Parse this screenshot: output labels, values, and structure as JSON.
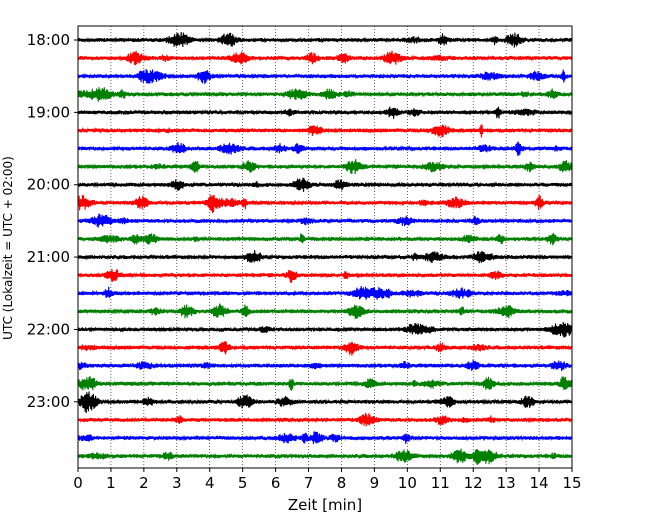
{
  "chart_data": {
    "type": "line",
    "title": "",
    "xlabel": "Zeit  [min]",
    "ylabel": "UTC (Lokalzeit = UTC + 02:00)",
    "xlim": [
      0,
      15
    ],
    "x_ticks": [
      "0",
      "1",
      "2",
      "3",
      "4",
      "5",
      "6",
      "7",
      "8",
      "9",
      "10",
      "11",
      "12",
      "13",
      "14",
      "15"
    ],
    "y_tick_labels": [
      "18:00",
      "19:00",
      "20:00",
      "21:00",
      "22:00",
      "23:00"
    ],
    "grid": "vertical dotted lines at each minute",
    "trace_colors": [
      "#000000",
      "#ff0000",
      "#0000ff",
      "#008000"
    ],
    "traces": [
      {
        "start": "18:00",
        "color": "#000000"
      },
      {
        "start": "18:15",
        "color": "#ff0000"
      },
      {
        "start": "18:30",
        "color": "#0000ff"
      },
      {
        "start": "18:45",
        "color": "#008000"
      },
      {
        "start": "19:00",
        "color": "#000000"
      },
      {
        "start": "19:15",
        "color": "#ff0000"
      },
      {
        "start": "19:30",
        "color": "#0000ff"
      },
      {
        "start": "19:45",
        "color": "#008000"
      },
      {
        "start": "20:00",
        "color": "#000000"
      },
      {
        "start": "20:15",
        "color": "#ff0000"
      },
      {
        "start": "20:30",
        "color": "#0000ff"
      },
      {
        "start": "20:45",
        "color": "#008000"
      },
      {
        "start": "21:00",
        "color": "#000000"
      },
      {
        "start": "21:15",
        "color": "#ff0000"
      },
      {
        "start": "21:30",
        "color": "#0000ff"
      },
      {
        "start": "21:45",
        "color": "#008000"
      },
      {
        "start": "22:00",
        "color": "#000000"
      },
      {
        "start": "22:15",
        "color": "#ff0000"
      },
      {
        "start": "22:30",
        "color": "#0000ff"
      },
      {
        "start": "22:45",
        "color": "#008000"
      },
      {
        "start": "23:00",
        "color": "#000000"
      },
      {
        "start": "23:15",
        "color": "#ff0000"
      },
      {
        "start": "23:30",
        "color": "#0000ff"
      },
      {
        "start": "23:45",
        "color": "#008000"
      }
    ]
  }
}
